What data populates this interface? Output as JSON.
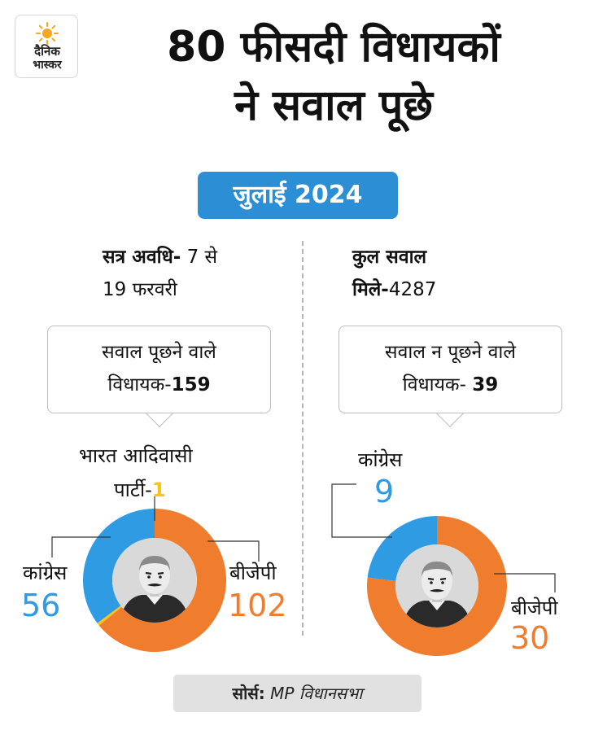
{
  "logo": {
    "line1": "दैनिक",
    "line2": "भास्कर",
    "sun_color": "#f5a623"
  },
  "title": {
    "line1": "80 फीसदी विधायकों",
    "line2": "ने सवाल पूछे"
  },
  "date_badge": "जुलाई 2024",
  "left_info": {
    "label": "सत्र अवधि-",
    "value_part1": " 7 से",
    "value_part2": "19 फरवरी"
  },
  "right_info": {
    "label_part1": "कुल सवाल",
    "label_part2": "मिले-",
    "value": "4287"
  },
  "left_bubble": {
    "line1": "सवाल पूछने वाले",
    "line2_text": "विधायक-",
    "line2_value": "159"
  },
  "right_bubble": {
    "line1": "सवाल न पूछने  वाले",
    "line2_text": "विधायक- ",
    "line2_value": "39"
  },
  "chart_data": [
    {
      "type": "pie",
      "style": "donut",
      "title": "सवाल पूछने वाले विधायक-159",
      "slices": [
        {
          "label": "बीजेपी",
          "value": 102,
          "color": "#f07d2e"
        },
        {
          "label": "भारत आदिवासी पार्टी-",
          "value": 1,
          "color": "#f5c518"
        },
        {
          "label": "कांग्रेस",
          "value": 56,
          "color": "#2f9be3"
        }
      ]
    },
    {
      "type": "pie",
      "style": "donut",
      "title": "सवाल न पूछने वाले विधायक-39",
      "slices": [
        {
          "label": "बीजेपी",
          "value": 30,
          "color": "#f07d2e"
        },
        {
          "label": "कांग्रेस",
          "value": 9,
          "color": "#2f9be3"
        }
      ]
    }
  ],
  "colors": {
    "bjp": "#f07d2e",
    "congress": "#2f9be3",
    "bap": "#f5c518",
    "badge_blue": "#2c8fd6"
  },
  "source": {
    "label": "सोर्स:",
    "value": " MP विधानसभा"
  }
}
